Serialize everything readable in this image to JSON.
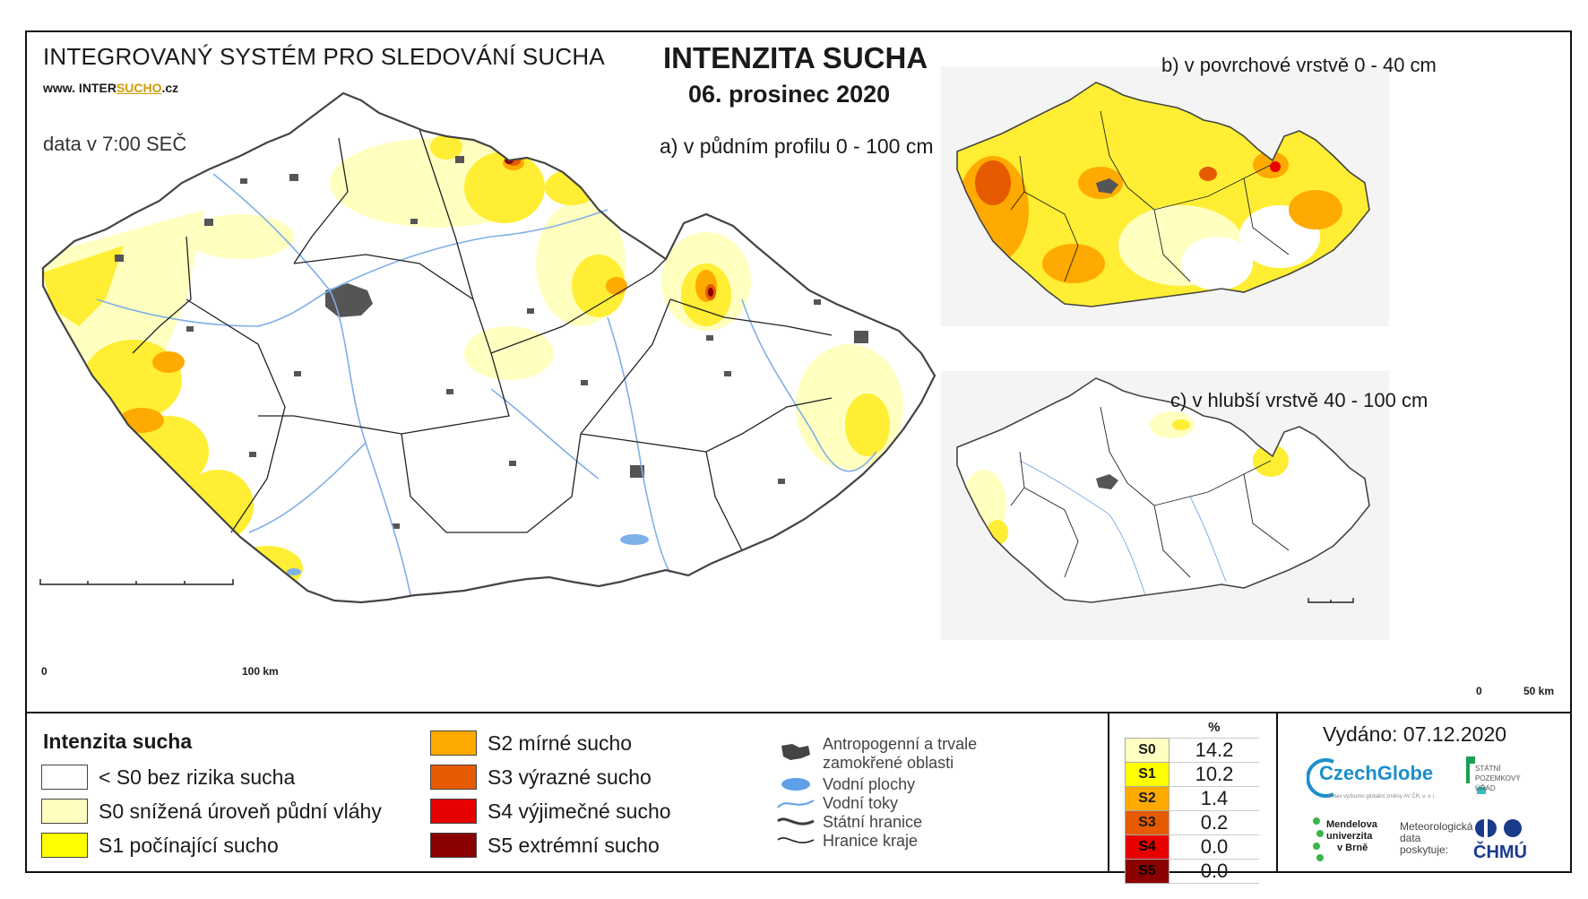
{
  "header": {
    "system": "INTEGROVANÝ SYSTÉM PRO SLEDOVÁNÍ SUCHA",
    "www_prefix": "www. INTER",
    "www_u": "SUCHO",
    "www_suffix": ".cz",
    "data_time": "data v 7:00 SEČ",
    "title": "INTENZITA SUCHA",
    "date": "06. prosinec 2020"
  },
  "maps": {
    "a_label": "a) v půdním profilu 0 - 100 cm",
    "b_label": "b) v povrchové vrstvě 0 - 40 cm",
    "c_label": "c) v hlubší vrstvě 40 - 100 cm",
    "scale_main": {
      "zero": "0",
      "max": "100 km"
    },
    "scale_small": {
      "zero": "0",
      "max": "50 km"
    }
  },
  "legend": {
    "title": "Intenzita sucha",
    "classes": [
      {
        "label": "< S0 bez rizika sucha",
        "color": "#ffffff"
      },
      {
        "label": "S0 snížená úroveň půdní vláhy",
        "color": "#ffffc0"
      },
      {
        "label": "S1 počínající sucho",
        "color": "#ffff00"
      },
      {
        "label": "S2 mírné sucho",
        "color": "#ffaa00"
      },
      {
        "label": "S3 výrazné sucho",
        "color": "#e65a00"
      },
      {
        "label": "S4 výjimečné sucho",
        "color": "#e60000"
      },
      {
        "label": "S5 extrémní sucho",
        "color": "#8b0000"
      }
    ]
  },
  "overlay_legend": [
    {
      "label1": "Antropogenní a trvale",
      "label2": "zamokřené oblasti",
      "icon": "urban-area-icon"
    },
    {
      "label1": "Vodní plochy",
      "label2": "",
      "icon": "water-body-icon"
    },
    {
      "label1": "Vodní toky",
      "label2": "",
      "icon": "river-icon"
    },
    {
      "label1": "Státní hranice",
      "label2": "",
      "icon": "state-border-icon"
    },
    {
      "label1": "Hranice kraje",
      "label2": "",
      "icon": "region-border-icon"
    }
  ],
  "stats": {
    "unit": "%",
    "rows": [
      {
        "cls": "S0",
        "value": "14.2",
        "color": "#ffffc0"
      },
      {
        "cls": "S1",
        "value": "10.2",
        "color": "#ffff00"
      },
      {
        "cls": "S2",
        "value": "1.4",
        "color": "#ffaa00"
      },
      {
        "cls": "S3",
        "value": "0.2",
        "color": "#e65a00"
      },
      {
        "cls": "S4",
        "value": "0.0",
        "color": "#e60000"
      },
      {
        "cls": "S5",
        "value": "0.0",
        "color": "#8b0000"
      }
    ]
  },
  "issued": "Vydáno: 07.12.2020",
  "logos": {
    "czechglobe": "CzechGlobe",
    "czechglobe_sub": "Ústav výzkumu globální změny AV ČR, v. v. i.",
    "spu1": "STÁTNÍ",
    "spu2": "POZEMKOVÝ",
    "spu3": "ÚŘAD",
    "mendel1": "Mendelova",
    "mendel2": "univerzita",
    "mendel3": "v Brně",
    "met1": "Meteorologická",
    "met2": "data",
    "met3": "poskytuje:",
    "chmu": "ČHMÚ"
  }
}
